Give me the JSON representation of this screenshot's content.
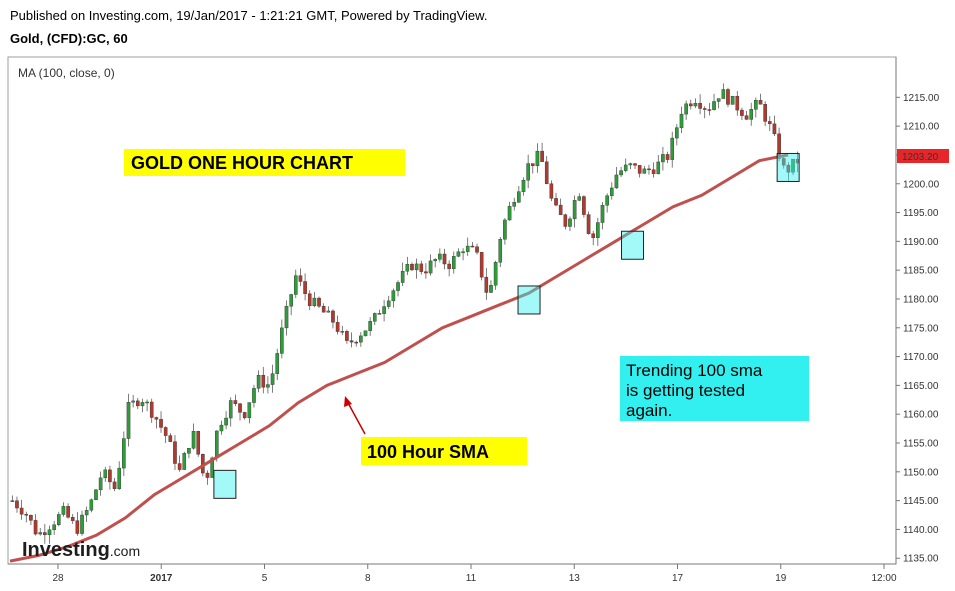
{
  "header": {
    "published_line": "Published on Investing.com, 19/Jan/2017 - 1:21:21 GMT, Powered by TradingView.",
    "symbol_line": "Gold, (CFD):GC, 60"
  },
  "indicator_label": "MA (100, close, 0)",
  "logo": {
    "text_bold": "Investing",
    "text_light": ".com"
  },
  "annotations": {
    "title_box": "GOLD ONE HOUR CHART",
    "sma_label": "100 Hour SMA",
    "note_lines": [
      "Trending 100 sma",
      "is getting tested",
      "again."
    ]
  },
  "price_tag": "1203.20",
  "colors": {
    "up_candle": "#2f9c3a",
    "down_candle": "#b03a2e",
    "sma_line": "#c0504d",
    "yellow_box": "#ffff00",
    "cyan_box": "#33f0f0",
    "price_tag": "#e8262a",
    "arrow": "#cc0000"
  },
  "chart_data": {
    "type": "candlestick",
    "title": "",
    "x_ticks": [
      "28",
      "2017",
      "5",
      "8",
      "11",
      "13",
      "17",
      "19",
      "12:00"
    ],
    "y_ticks": [
      1135,
      1140,
      1145,
      1150,
      1155,
      1160,
      1165,
      1170,
      1175,
      1180,
      1185,
      1190,
      1195,
      1200,
      1205,
      1210,
      1215
    ],
    "ylim": [
      1134,
      1222
    ],
    "series": [
      {
        "name": "MA (100, close, 0)",
        "type": "line",
        "values": [
          1134.5,
          1135.5,
          1137,
          1139,
          1142,
          1146,
          1149,
          1152,
          1155,
          1158,
          1162,
          1165,
          1167,
          1169,
          1172,
          1175,
          1177,
          1179,
          1181,
          1184,
          1187,
          1190,
          1193,
          1196,
          1198,
          1201,
          1204,
          1205
        ]
      },
      {
        "name": "Gold price",
        "type": "price-path",
        "values": [
          1145,
          1143,
          1139,
          1141,
          1143,
          1140,
          1144,
          1150,
          1147,
          1161,
          1163,
          1160,
          1156,
          1150,
          1157,
          1148,
          1158,
          1162,
          1160,
          1166,
          1165,
          1175,
          1184,
          1180,
          1178,
          1176,
          1172,
          1174,
          1176,
          1180,
          1183,
          1186,
          1185,
          1187,
          1186,
          1189,
          1188,
          1180,
          1192,
          1198,
          1203,
          1205,
          1196,
          1193,
          1199,
          1190,
          1197,
          1202,
          1203,
          1202,
          1203,
          1205,
          1213,
          1215,
          1213,
          1216,
          1214,
          1212,
          1214,
          1209,
          1202,
          1204
        ]
      }
    ],
    "highlight_boxes_near_values": [
      1148,
      1180,
      1189.5,
      1203
    ],
    "last_price": 1203.2
  }
}
